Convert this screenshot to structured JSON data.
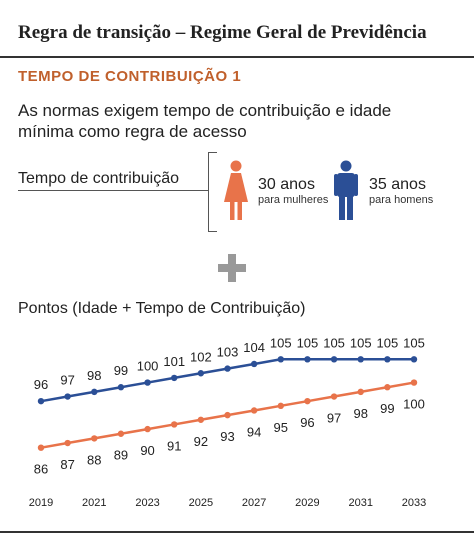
{
  "header": {
    "title": "Regra de transição – Regime Geral de Previdência",
    "subtitle": "TEMPO DE CONTRIBUIÇÃO 1",
    "intro": "As normas exigem tempo de contribuição e idade mínima como regra de acesso",
    "contribution_label": "Tempo de contribuição"
  },
  "women": {
    "years": "30 anos",
    "label": "para mulheres",
    "color": "#e8734a",
    "icon": "woman-icon"
  },
  "men": {
    "years": "35 anos",
    "label": "para homens",
    "color": "#2b4f96",
    "icon": "man-icon"
  },
  "plus_icon": "plus-icon",
  "chart_data": {
    "type": "line",
    "title": "Pontos (Idade + Tempo de Contribuição)",
    "x": [
      2019,
      2020,
      2021,
      2022,
      2023,
      2024,
      2025,
      2026,
      2027,
      2028,
      2029,
      2030,
      2031,
      2032,
      2033
    ],
    "xticks": [
      "2019",
      "2021",
      "2023",
      "2025",
      "2027",
      "2029",
      "2031",
      "2033"
    ],
    "ylim": [
      84,
      107
    ],
    "grid": false,
    "series": [
      {
        "color": "#2b4f96",
        "values": [
          96,
          97,
          98,
          99,
          100,
          101,
          102,
          103,
          104,
          105,
          105,
          105,
          105,
          105,
          105
        ]
      },
      {
        "color": "#e8734a",
        "values": [
          86,
          87,
          88,
          89,
          90,
          91,
          92,
          93,
          94,
          95,
          96,
          97,
          98,
          99,
          100
        ]
      }
    ]
  }
}
